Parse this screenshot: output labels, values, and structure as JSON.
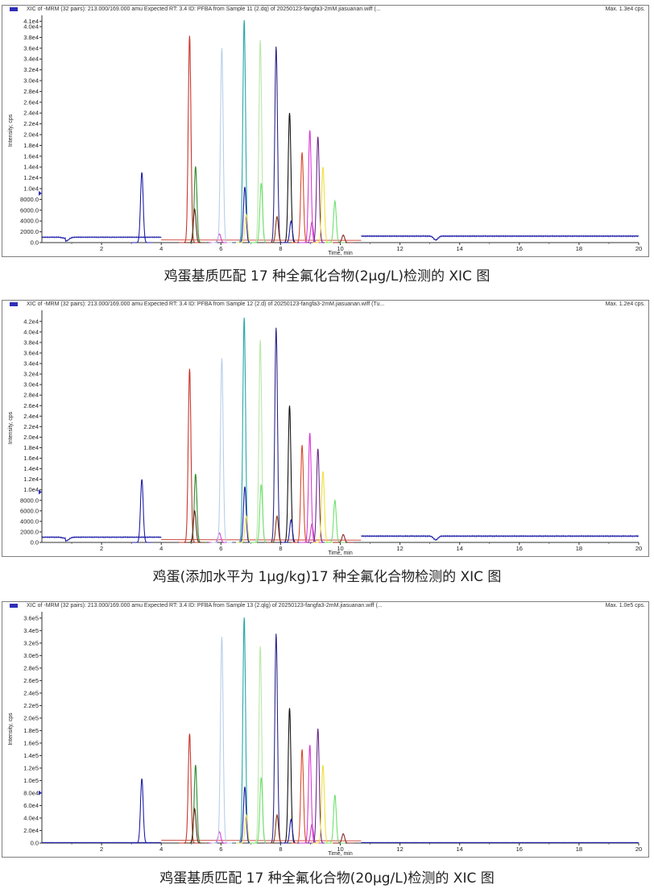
{
  "panels": [
    {
      "header_text": "XIC of -MRM (32 pairs): 213.000/169.000 amu Expected RT: 3.4 ID: PFBA from Sample 11 (2.dq) of 20250123-fangfa3-2mM.jiasuanan.wiff (...",
      "max_text": "Max. 1.3e4 cps.",
      "caption": "鸡蛋基质匹配 17 种全氟化合物(2μg/L)检测的 XIC 图",
      "chart_data": {
        "type": "line",
        "xlabel": "Time, min",
        "ylabel": "Intensity, cps",
        "xlim": [
          0,
          20
        ],
        "ylim": [
          0,
          41500
        ],
        "x_ticks": [
          2,
          4,
          6,
          8,
          10,
          12,
          14,
          16,
          18,
          20
        ],
        "y_ticks": [
          "0.0",
          "2000.0",
          "4000.0",
          "6000.0",
          "8000.0",
          "1.0e4",
          "1.2e4",
          "1.4e4",
          "1.6e4",
          "1.8e4",
          "2.0e4",
          "2.2e4",
          "2.4e4",
          "2.6e4",
          "2.8e4",
          "3.0e4",
          "3.2e4",
          "3.4e4",
          "3.6e4",
          "3.8e4",
          "4.0e4",
          "4.1e4"
        ],
        "y_tick_values": [
          0,
          2000,
          4000,
          6000,
          8000,
          10000,
          12000,
          14000,
          16000,
          18000,
          20000,
          22000,
          24000,
          26000,
          28000,
          30000,
          32000,
          34000,
          36000,
          38000,
          40000,
          41000
        ],
        "baseline": {
          "name": "PFBA",
          "color": "#1f1fa8",
          "segments": [
            {
              "x0": 0,
              "x1": 4.0,
              "level": 1000
            },
            {
              "x0": 10.7,
              "x1": 20,
              "level": 1200
            }
          ],
          "dip": {
            "x": 0.8,
            "depth": 700
          }
        },
        "peaks": [
          {
            "rt": 3.35,
            "height": 13000,
            "color": "#1f1fa8"
          },
          {
            "rt": 4.95,
            "height": 38300,
            "color": "#c8372d"
          },
          {
            "rt": 5.15,
            "height": 14100,
            "color": "#2e8b2e"
          },
          {
            "rt": 5.12,
            "height": 6200,
            "color": "#5a2a1a"
          },
          {
            "rt": 5.95,
            "height": 1600,
            "color": "#d83cd8"
          },
          {
            "rt": 6.03,
            "height": 36000,
            "color": "#b8d0e8"
          },
          {
            "rt": 6.78,
            "height": 41200,
            "color": "#2aa6a6"
          },
          {
            "rt": 6.8,
            "height": 10300,
            "color": "#1f1fa8"
          },
          {
            "rt": 6.85,
            "height": 5200,
            "color": "#e8e060"
          },
          {
            "rt": 7.32,
            "height": 37500,
            "color": "#b8e8a8"
          },
          {
            "rt": 7.35,
            "height": 11000,
            "color": "#6ee06e"
          },
          {
            "rt": 7.85,
            "height": 36300,
            "color": "#2a2a8a"
          },
          {
            "rt": 7.88,
            "height": 4800,
            "color": "#8b3a1a"
          },
          {
            "rt": 8.3,
            "height": 24000,
            "color": "#111111"
          },
          {
            "rt": 8.35,
            "height": 4000,
            "color": "#1f1fa8"
          },
          {
            "rt": 8.72,
            "height": 16700,
            "color": "#d84a2a"
          },
          {
            "rt": 8.98,
            "height": 20800,
            "color": "#d83cd8"
          },
          {
            "rt": 9.05,
            "height": 3800,
            "color": "#c83cc8"
          },
          {
            "rt": 9.25,
            "height": 19600,
            "color": "#6a2a8a"
          },
          {
            "rt": 9.42,
            "height": 14000,
            "color": "#f0e040"
          },
          {
            "rt": 9.82,
            "height": 7700,
            "color": "#6ee06e"
          },
          {
            "rt": 10.1,
            "height": 1400,
            "color": "#8b2a2a"
          }
        ]
      }
    },
    {
      "header_text": "XIC of -MRM (32 pairs): 213.000/169.000 amu Expected RT: 3.4 ID: PFBA from Sample 12 (2.d) of 20250123-fangfa3-2mM.jiasuanan.wiff (Tu...",
      "max_text": "Max. 1.2e4 cps.",
      "caption": "鸡蛋(添加水平为 1μg/kg)17 种全氟化合物检测的 XIC 图",
      "chart_data": {
        "type": "line",
        "xlabel": "Time, min",
        "ylabel": "Intensity, cps",
        "xlim": [
          0,
          20
        ],
        "ylim": [
          0,
          43500
        ],
        "x_ticks": [
          2,
          4,
          6,
          8,
          10,
          12,
          14,
          16,
          18,
          20
        ],
        "y_ticks": [
          "0.0",
          "2000.0",
          "4000.0",
          "6000.0",
          "8000.0",
          "1.0e4",
          "1.2e4",
          "1.4e4",
          "1.6e4",
          "1.8e4",
          "2.0e4",
          "2.2e4",
          "2.4e4",
          "2.6e4",
          "2.8e4",
          "3.0e4",
          "3.2e4",
          "3.4e4",
          "3.6e4",
          "3.8e4",
          "4.0e4",
          "4.2e4"
        ],
        "y_tick_values": [
          0,
          2000,
          4000,
          6000,
          8000,
          10000,
          12000,
          14000,
          16000,
          18000,
          20000,
          22000,
          24000,
          26000,
          28000,
          30000,
          32000,
          34000,
          36000,
          38000,
          40000,
          42000
        ],
        "baseline": {
          "name": "PFBA",
          "color": "#1f1fa8",
          "segments": [
            {
              "x0": 0,
              "x1": 4.0,
              "level": 1000
            },
            {
              "x0": 10.7,
              "x1": 20,
              "level": 1200
            }
          ],
          "dip": {
            "x": 0.8,
            "depth": 700
          }
        },
        "peaks": [
          {
            "rt": 3.35,
            "height": 12000,
            "color": "#1f1fa8"
          },
          {
            "rt": 4.95,
            "height": 33000,
            "color": "#c8372d"
          },
          {
            "rt": 5.15,
            "height": 13000,
            "color": "#2e8b2e"
          },
          {
            "rt": 5.12,
            "height": 6000,
            "color": "#5a2a1a"
          },
          {
            "rt": 5.95,
            "height": 1800,
            "color": "#d83cd8"
          },
          {
            "rt": 6.03,
            "height": 35000,
            "color": "#b8d0e8"
          },
          {
            "rt": 6.78,
            "height": 42700,
            "color": "#2aa6a6"
          },
          {
            "rt": 6.8,
            "height": 10600,
            "color": "#1f1fa8"
          },
          {
            "rt": 6.85,
            "height": 5000,
            "color": "#e8e060"
          },
          {
            "rt": 7.32,
            "height": 38500,
            "color": "#b8e8a8"
          },
          {
            "rt": 7.35,
            "height": 11000,
            "color": "#6ee06e"
          },
          {
            "rt": 7.85,
            "height": 40800,
            "color": "#2a2a8a"
          },
          {
            "rt": 7.88,
            "height": 5000,
            "color": "#8b3a1a"
          },
          {
            "rt": 8.3,
            "height": 26000,
            "color": "#111111"
          },
          {
            "rt": 8.35,
            "height": 4300,
            "color": "#1f1fa8"
          },
          {
            "rt": 8.72,
            "height": 18500,
            "color": "#d84a2a"
          },
          {
            "rt": 8.98,
            "height": 20800,
            "color": "#d83cd8"
          },
          {
            "rt": 9.05,
            "height": 3500,
            "color": "#c83cc8"
          },
          {
            "rt": 9.25,
            "height": 17800,
            "color": "#6a2a8a"
          },
          {
            "rt": 9.42,
            "height": 13500,
            "color": "#f0e040"
          },
          {
            "rt": 9.82,
            "height": 8000,
            "color": "#6ee06e"
          },
          {
            "rt": 10.1,
            "height": 1500,
            "color": "#8b2a2a"
          }
        ]
      }
    },
    {
      "header_text": "XIC of -MRM (32 pairs): 213.000/169.000 amu Expected RT: 3.4 ID: PFBA from Sample 13 (2.qlg) of 20250123-fangfa3-2mM.jiasuanan.wiff (...",
      "max_text": "Max. 1.0e5 cps.",
      "caption": "鸡蛋基质匹配 17 种全氟化合物(20μg/L)检测的 XIC 图",
      "chart_data": {
        "type": "line",
        "xlabel": "Time, min",
        "ylabel": "Intensity, cps",
        "xlim": [
          0,
          20
        ],
        "ylim": [
          0,
          365000
        ],
        "x_ticks": [
          2,
          4,
          6,
          8,
          10,
          12,
          14,
          16,
          18,
          20
        ],
        "y_ticks": [
          "0.0",
          "2.0e4",
          "4.0e4",
          "6.0e4",
          "8.0e4",
          "1.0e5",
          "1.2e5",
          "1.4e5",
          "1.6e5",
          "1.8e5",
          "2.0e5",
          "2.2e5",
          "2.4e5",
          "2.6e5",
          "2.8e5",
          "3.0e5",
          "3.2e5",
          "3.4e5",
          "3.6e5"
        ],
        "y_tick_values": [
          0,
          20000,
          40000,
          60000,
          80000,
          100000,
          120000,
          140000,
          160000,
          180000,
          200000,
          220000,
          240000,
          260000,
          280000,
          300000,
          320000,
          340000,
          360000
        ],
        "baseline": {
          "name": "PFBA",
          "color": "#1f1fa8",
          "segments": [
            {
              "x0": 0,
              "x1": 4.0,
              "level": 800
            },
            {
              "x0": 10.7,
              "x1": 20,
              "level": 800
            }
          ],
          "dip": {
            "x": 0.8,
            "depth": 0
          }
        },
        "peaks": [
          {
            "rt": 3.35,
            "height": 103000,
            "color": "#1f1fa8"
          },
          {
            "rt": 4.95,
            "height": 175000,
            "color": "#c8372d"
          },
          {
            "rt": 5.15,
            "height": 125000,
            "color": "#2e8b2e"
          },
          {
            "rt": 5.12,
            "height": 55000,
            "color": "#5a2a1a"
          },
          {
            "rt": 5.95,
            "height": 18000,
            "color": "#d83cd8"
          },
          {
            "rt": 6.03,
            "height": 330000,
            "color": "#b8d0e8"
          },
          {
            "rt": 6.78,
            "height": 361000,
            "color": "#2aa6a6"
          },
          {
            "rt": 6.8,
            "height": 90000,
            "color": "#1f1fa8"
          },
          {
            "rt": 6.85,
            "height": 45000,
            "color": "#e8e060"
          },
          {
            "rt": 7.32,
            "height": 315000,
            "color": "#b8e8a8"
          },
          {
            "rt": 7.35,
            "height": 105000,
            "color": "#6ee06e"
          },
          {
            "rt": 7.85,
            "height": 335000,
            "color": "#2a2a8a"
          },
          {
            "rt": 7.88,
            "height": 45000,
            "color": "#8b3a1a"
          },
          {
            "rt": 8.3,
            "height": 216000,
            "color": "#111111"
          },
          {
            "rt": 8.35,
            "height": 38000,
            "color": "#1f1fa8"
          },
          {
            "rt": 8.72,
            "height": 150000,
            "color": "#d84a2a"
          },
          {
            "rt": 8.98,
            "height": 157000,
            "color": "#d83cd8"
          },
          {
            "rt": 9.05,
            "height": 30000,
            "color": "#c83cc8"
          },
          {
            "rt": 9.25,
            "height": 183000,
            "color": "#6a2a8a"
          },
          {
            "rt": 9.42,
            "height": 125000,
            "color": "#f0e040"
          },
          {
            "rt": 9.82,
            "height": 77000,
            "color": "#6ee06e"
          },
          {
            "rt": 10.1,
            "height": 15000,
            "color": "#8b2a2a"
          }
        ]
      }
    }
  ]
}
